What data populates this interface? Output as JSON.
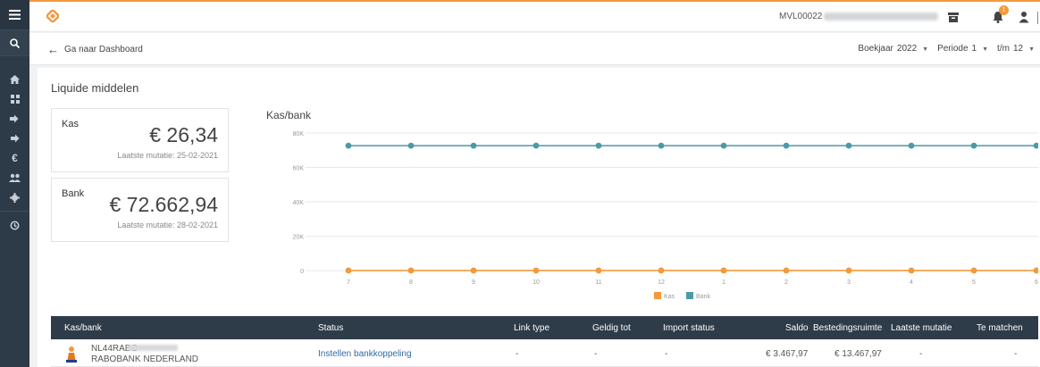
{
  "topbar": {
    "company_code": "MVL00022 -",
    "notification_count": "1"
  },
  "breadcrumb": {
    "back_label": "Ga naar Dashboard"
  },
  "filters": {
    "boekjaar_label": "Boekjaar",
    "boekjaar_value": "2022",
    "periode_label": "Periode",
    "periode_from": "1",
    "tm_label": "t/m",
    "periode_to": "12"
  },
  "page": {
    "title": "Liquide middelen"
  },
  "kpis": {
    "kas": {
      "label": "Kas",
      "value": "€ 26,34",
      "sub": "Laatste mutatie: 25-02-2021"
    },
    "bank": {
      "label": "Bank",
      "value": "€ 72.662,94",
      "sub": "Laatste mutatie: 28-02-2021"
    }
  },
  "chart_data": {
    "type": "line",
    "title": "Kas/bank",
    "categories": [
      "7",
      "8",
      "9",
      "10",
      "11",
      "12",
      "1",
      "2",
      "3",
      "4",
      "5",
      "6"
    ],
    "yticks": [
      "0",
      "20K",
      "40K",
      "60K",
      "80K"
    ],
    "ylim": [
      0,
      80000
    ],
    "grid": true,
    "legend_position": "bottom",
    "series": [
      {
        "name": "Kas",
        "color": "#f29a3c",
        "values": [
          26.34,
          26.34,
          26.34,
          26.34,
          26.34,
          26.34,
          26.34,
          26.34,
          26.34,
          26.34,
          26.34,
          26.34
        ]
      },
      {
        "name": "Bank",
        "color": "#4a9aa8",
        "values": [
          72662.94,
          72662.94,
          72662.94,
          72662.94,
          72662.94,
          72662.94,
          72662.94,
          72662.94,
          72662.94,
          72662.94,
          72662.94,
          72662.94
        ]
      }
    ]
  },
  "table": {
    "headers": {
      "kasbank": "Kas/bank",
      "status": "Status",
      "link_type": "Link type",
      "geldig_tot": "Geldig tot",
      "import_status": "Import status",
      "saldo": "Saldo",
      "bestedingsruimte": "Bestedingsruimte",
      "laatste_mutatie": "Laatste mutatie",
      "te_matchen": "Te matchen"
    },
    "rows": [
      {
        "iban": "NL44RABO",
        "bank_name": "RABOBANK NEDERLAND",
        "status": "Instellen bankkoppeling",
        "link_type": "-",
        "geldig_tot": "-",
        "import_status": "-",
        "saldo": "€ 3.467,97",
        "bestedingsruimte": "€ 13.467,97",
        "laatste_mutatie": "-",
        "te_matchen": "-"
      }
    ]
  }
}
